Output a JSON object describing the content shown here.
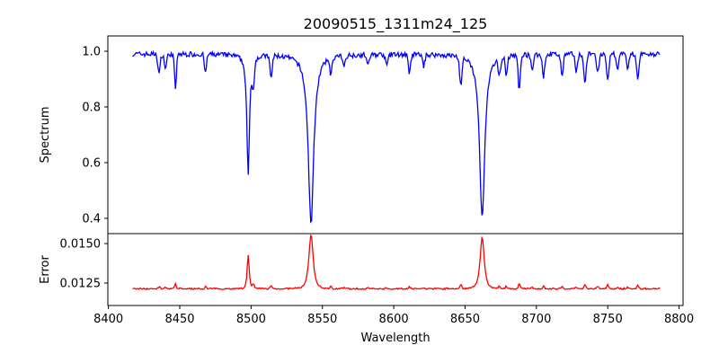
{
  "chart_data": [
    {
      "type": "line",
      "title": "20090515_1311m24_125",
      "xlabel": "",
      "ylabel": "Spectrum",
      "xlim": [
        8399.6,
        8802.8
      ],
      "ylim": [
        0.345,
        1.055
      ],
      "xticks": [
        8400,
        8450,
        8500,
        8550,
        8600,
        8650,
        8700,
        8750,
        8800
      ],
      "yticks": [
        0.4,
        0.6,
        0.8,
        1.0
      ],
      "ytick_labels": [
        "0.4",
        "0.6",
        "0.8",
        "1.0"
      ],
      "color": "#0000ff",
      "x_range": [
        8417,
        8787
      ],
      "continuum": 0.99,
      "absorption_lines": [
        {
          "center": 8435.5,
          "depth": 0.07,
          "width": 0.8,
          "profile": "gauss"
        },
        {
          "center": 8440,
          "depth": 0.05,
          "width": 0.8,
          "profile": "gauss"
        },
        {
          "center": 8447,
          "depth": 0.12,
          "width": 0.7,
          "profile": "gauss"
        },
        {
          "center": 8468,
          "depth": 0.07,
          "width": 0.7,
          "profile": "gauss"
        },
        {
          "center": 8498,
          "depth": 0.44,
          "width": 1.1,
          "profile": "lorentz"
        },
        {
          "center": 8501.5,
          "depth": 0.09,
          "width": 0.7,
          "profile": "gauss"
        },
        {
          "center": 8514,
          "depth": 0.08,
          "width": 0.8,
          "profile": "gauss"
        },
        {
          "center": 8542,
          "depth": 0.61,
          "width": 2.3,
          "profile": "lorentz"
        },
        {
          "center": 8556,
          "depth": 0.06,
          "width": 0.7,
          "profile": "gauss"
        },
        {
          "center": 8565,
          "depth": 0.04,
          "width": 0.8,
          "profile": "gauss"
        },
        {
          "center": 8582,
          "depth": 0.04,
          "width": 0.8,
          "profile": "gauss"
        },
        {
          "center": 8595,
          "depth": 0.04,
          "width": 0.8,
          "profile": "gauss"
        },
        {
          "center": 8611,
          "depth": 0.07,
          "width": 0.8,
          "profile": "gauss"
        },
        {
          "center": 8621,
          "depth": 0.04,
          "width": 0.8,
          "profile": "gauss"
        },
        {
          "center": 8647,
          "depth": 0.1,
          "width": 0.8,
          "profile": "gauss"
        },
        {
          "center": 8662,
          "depth": 0.59,
          "width": 2.2,
          "profile": "lorentz"
        },
        {
          "center": 8674,
          "depth": 0.06,
          "width": 0.8,
          "profile": "gauss"
        },
        {
          "center": 8679,
          "depth": 0.07,
          "width": 0.7,
          "profile": "gauss"
        },
        {
          "center": 8688,
          "depth": 0.13,
          "width": 0.7,
          "profile": "gauss"
        },
        {
          "center": 8697,
          "depth": 0.06,
          "width": 0.8,
          "profile": "gauss"
        },
        {
          "center": 8705,
          "depth": 0.08,
          "width": 0.8,
          "profile": "gauss"
        },
        {
          "center": 8718,
          "depth": 0.08,
          "width": 0.8,
          "profile": "gauss"
        },
        {
          "center": 8728,
          "depth": 0.06,
          "width": 0.8,
          "profile": "gauss"
        },
        {
          "center": 8734,
          "depth": 0.1,
          "width": 0.9,
          "profile": "gauss"
        },
        {
          "center": 8743,
          "depth": 0.07,
          "width": 0.8,
          "profile": "gauss"
        },
        {
          "center": 8750,
          "depth": 0.1,
          "width": 0.9,
          "profile": "gauss"
        },
        {
          "center": 8757,
          "depth": 0.05,
          "width": 0.8,
          "profile": "gauss"
        },
        {
          "center": 8764,
          "depth": 0.06,
          "width": 0.8,
          "profile": "gauss"
        },
        {
          "center": 8771,
          "depth": 0.09,
          "width": 0.8,
          "profile": "gauss"
        }
      ],
      "noise_amplitude": 0.012
    },
    {
      "type": "line",
      "xlabel": "Wavelength",
      "ylabel": "Error",
      "xlim": [
        8399.6,
        8802.8
      ],
      "ylim": [
        0.01108,
        0.01563
      ],
      "xticks": [
        8400,
        8450,
        8500,
        8550,
        8600,
        8650,
        8700,
        8750,
        8800
      ],
      "xtick_labels": [
        "8400",
        "8450",
        "8500",
        "8550",
        "8600",
        "8650",
        "8700",
        "8750",
        "8800"
      ],
      "yticks": [
        0.0125,
        0.015
      ],
      "ytick_labels": [
        "0.0125",
        "0.0150"
      ],
      "color": "#ff0000",
      "baseline": 0.01213,
      "peaks": [
        {
          "x": 8498,
          "y": 0.0139
        },
        {
          "x": 8542,
          "y": 0.0157
        },
        {
          "x": 8662,
          "y": 0.0155
        }
      ],
      "noise_amplitude": 4e-05
    }
  ]
}
